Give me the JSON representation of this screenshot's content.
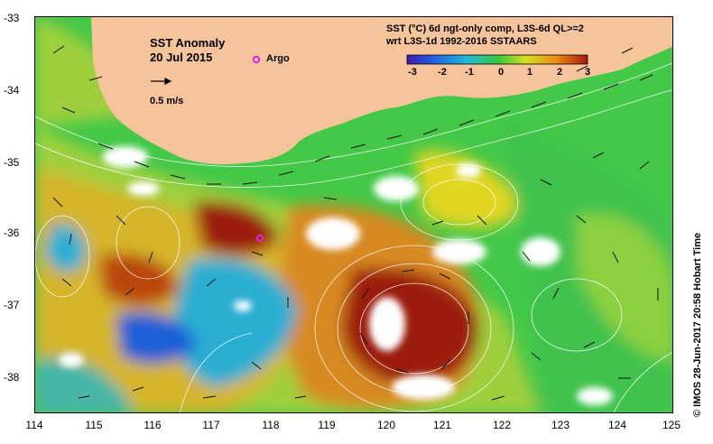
{
  "map": {
    "title": "SST Anomaly",
    "date": "20 Jul 2015",
    "argo_label": "Argo",
    "velocity_scale_label": "0.5 m/s",
    "colorbar_title_line1": "SST (°C) 6d ngt-only comp, L3S-6d QL>=2",
    "colorbar_title_line2": "wrt L3S-1d 1992-2016 SSTAARS",
    "colorbar_ticks": [
      "-3",
      "-2",
      "-1",
      "0",
      "1",
      "2",
      "3"
    ],
    "x_ticks": [
      "114",
      "115",
      "116",
      "117",
      "118",
      "119",
      "120",
      "121",
      "122",
      "123",
      "124",
      "125"
    ],
    "y_ticks": [
      "-33",
      "-34",
      "-35",
      "-36",
      "-37",
      "-38"
    ],
    "credit": "© IMOS 28-Jun-2017 20:58 Hobart Time",
    "colors": {
      "land": "#f6c49a",
      "cloud": "#ffffff",
      "argo": "#e020e0",
      "cold": "#1a5fd6",
      "cool": "#27b3c7",
      "neutral": "#43c848",
      "warm": "#e7a51e",
      "hot": "#9b1c08"
    }
  }
}
